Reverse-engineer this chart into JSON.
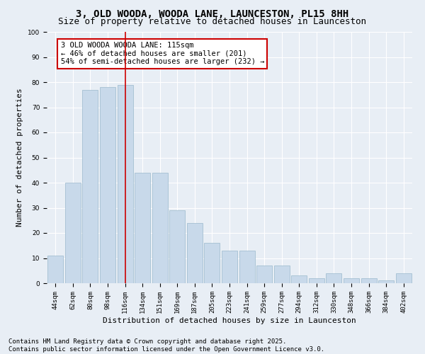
{
  "title_line1": "3, OLD WOODA, WOODA LANE, LAUNCESTON, PL15 8HH",
  "title_line2": "Size of property relative to detached houses in Launceston",
  "xlabel": "Distribution of detached houses by size in Launceston",
  "ylabel": "Number of detached properties",
  "categories": [
    "44sqm",
    "62sqm",
    "80sqm",
    "98sqm",
    "116sqm",
    "134sqm",
    "151sqm",
    "169sqm",
    "187sqm",
    "205sqm",
    "223sqm",
    "241sqm",
    "259sqm",
    "277sqm",
    "294sqm",
    "312sqm",
    "330sqm",
    "348sqm",
    "366sqm",
    "384sqm",
    "402sqm"
  ],
  "values": [
    11,
    40,
    77,
    78,
    79,
    44,
    44,
    29,
    24,
    16,
    13,
    13,
    7,
    7,
    3,
    2,
    4,
    2,
    2,
    1,
    4
  ],
  "bar_color": "#c8d9ea",
  "bar_edge_color": "#9ab8cc",
  "highlight_index": 4,
  "highlight_line_color": "#cc0000",
  "annotation_text": "3 OLD WOODA WOODA LANE: 115sqm\n← 46% of detached houses are smaller (201)\n54% of semi-detached houses are larger (232) →",
  "annotation_box_facecolor": "white",
  "annotation_box_edgecolor": "#cc0000",
  "ylim": [
    0,
    100
  ],
  "yticks": [
    0,
    10,
    20,
    30,
    40,
    50,
    60,
    70,
    80,
    90,
    100
  ],
  "background_color": "#e8eef5",
  "plot_background": "#e8eef5",
  "footer_line1": "Contains HM Land Registry data © Crown copyright and database right 2025.",
  "footer_line2": "Contains public sector information licensed under the Open Government Licence v3.0.",
  "title_fontsize": 10,
  "subtitle_fontsize": 9,
  "axis_label_fontsize": 8,
  "tick_fontsize": 6.5,
  "annotation_fontsize": 7.5,
  "footer_fontsize": 6.5
}
